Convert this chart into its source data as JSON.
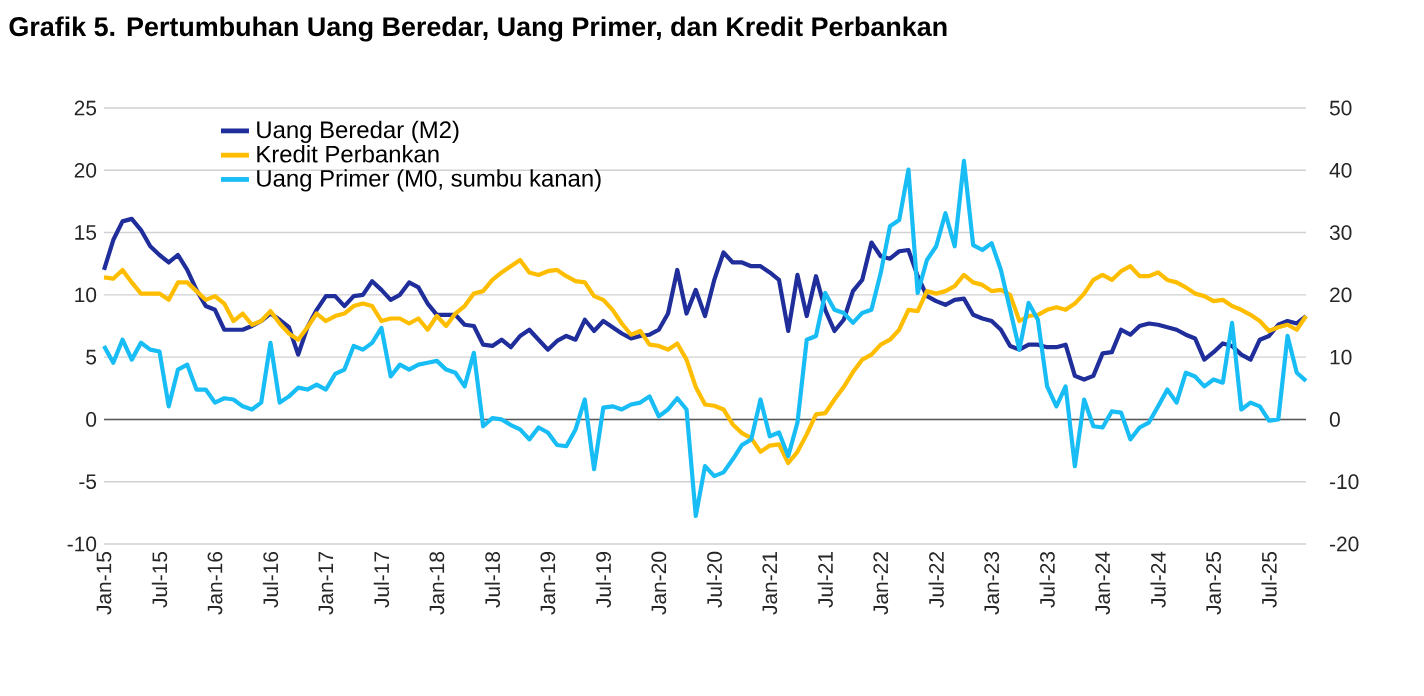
{
  "chart_data": {
    "type": "line",
    "title": "Grafik 5. Pertumbuhan Uang Beredar, Uang Primer, dan Kredit Perbankan",
    "x": [
      "2015-01",
      "2015-02",
      "2015-03",
      "2015-04",
      "2015-05",
      "2015-06",
      "2015-07",
      "2015-08",
      "2015-09",
      "2015-10",
      "2015-11",
      "2015-12",
      "2016-01",
      "2016-02",
      "2016-03",
      "2016-04",
      "2016-05",
      "2016-06",
      "2016-07",
      "2016-08",
      "2016-09",
      "2016-10",
      "2016-11",
      "2016-12",
      "2017-01",
      "2017-02",
      "2017-03",
      "2017-04",
      "2017-05",
      "2017-06",
      "2017-07",
      "2017-08",
      "2017-09",
      "2017-10",
      "2017-11",
      "2017-12",
      "2018-01",
      "2018-02",
      "2018-03",
      "2018-04",
      "2018-05",
      "2018-06",
      "2018-07",
      "2018-08",
      "2018-09",
      "2018-10",
      "2018-11",
      "2018-12",
      "2019-01",
      "2019-02",
      "2019-03",
      "2019-04",
      "2019-05",
      "2019-06",
      "2019-07",
      "2019-08",
      "2019-09",
      "2019-10",
      "2019-11",
      "2019-12",
      "2020-01",
      "2020-02",
      "2020-03",
      "2020-04",
      "2020-05",
      "2020-06",
      "2020-07",
      "2020-08",
      "2020-09",
      "2020-10",
      "2020-11",
      "2020-12",
      "2021-01",
      "2021-02",
      "2021-03",
      "2021-04",
      "2021-05",
      "2021-06",
      "2021-07",
      "2021-08",
      "2021-09",
      "2021-10",
      "2021-11",
      "2021-12",
      "2022-01",
      "2022-02",
      "2022-03",
      "2022-04",
      "2022-05",
      "2022-06",
      "2022-07",
      "2022-08",
      "2022-09",
      "2022-10",
      "2022-11",
      "2022-12",
      "2023-01",
      "2023-02",
      "2023-03",
      "2023-04",
      "2023-05",
      "2023-06",
      "2023-07",
      "2023-08",
      "2023-09",
      "2023-10",
      "2023-11",
      "2023-12",
      "2024-01",
      "2024-02",
      "2024-03",
      "2024-04",
      "2024-05",
      "2024-06",
      "2024-07",
      "2024-08",
      "2024-09",
      "2024-10",
      "2024-11",
      "2024-12",
      "2025-01",
      "2025-02",
      "2025-03",
      "2025-04",
      "2025-05",
      "2025-06",
      "2025-07",
      "2025-08",
      "2025-09",
      "2025-10",
      "2025-11"
    ],
    "series": [
      {
        "name": "Uang Beredar (M2)",
        "color": "#1f2e9b",
        "values": [
          12.0,
          14.4,
          15.9,
          16.1,
          15.2,
          13.9,
          13.2,
          12.6,
          13.2,
          12.0,
          10.4,
          9.1,
          8.8,
          7.2,
          7.2,
          7.2,
          7.5,
          7.9,
          8.5,
          8.0,
          7.4,
          5.2,
          7.4,
          8.8,
          9.9,
          9.9,
          9.1,
          9.9,
          10.0,
          11.1,
          10.4,
          9.6,
          10.0,
          11.0,
          10.6,
          9.3,
          8.4,
          8.4,
          8.4,
          7.6,
          7.5,
          6.0,
          5.9,
          6.4,
          5.8,
          6.7,
          7.2,
          6.4,
          5.6,
          6.3,
          6.7,
          6.4,
          8.0,
          7.1,
          7.9,
          7.4,
          6.9,
          6.5,
          6.7,
          6.8,
          7.2,
          8.5,
          12.0,
          8.5,
          10.4,
          8.3,
          11.2,
          13.4,
          12.6,
          12.6,
          12.3,
          12.3,
          11.8,
          11.2,
          7.1,
          11.6,
          8.3,
          11.5,
          8.8,
          7.1,
          8.0,
          10.3,
          11.2,
          14.2,
          13.1,
          12.9,
          13.5,
          13.6,
          11.5,
          9.9,
          9.5,
          9.2,
          9.6,
          9.7,
          8.4,
          8.1,
          7.9,
          7.2,
          5.9,
          5.6,
          6.0,
          6.0,
          5.8,
          5.8,
          6.0,
          3.5,
          3.2,
          3.5,
          5.3,
          5.4,
          7.2,
          6.8,
          7.5,
          7.7,
          7.6,
          7.4,
          7.2,
          6.8,
          6.5,
          4.8,
          5.4,
          6.1,
          5.9,
          5.2,
          4.8,
          6.4,
          6.7,
          7.6,
          7.9,
          7.7,
          8.3
        ]
      },
      {
        "name": "Kredit Perbankan",
        "color": "#ffbd00",
        "values": [
          11.4,
          11.3,
          12.0,
          11.0,
          10.1,
          10.1,
          10.1,
          9.6,
          11.0,
          11.0,
          10.3,
          9.6,
          9.9,
          9.3,
          7.9,
          8.5,
          7.6,
          7.9,
          8.7,
          7.7,
          6.9,
          6.4,
          7.4,
          8.5,
          7.9,
          8.3,
          8.5,
          9.1,
          9.3,
          9.1,
          7.9,
          8.1,
          8.1,
          7.7,
          8.1,
          7.2,
          8.3,
          7.5,
          8.5,
          9.1,
          10.1,
          10.3,
          11.2,
          11.8,
          12.3,
          12.8,
          11.8,
          11.6,
          11.9,
          12.0,
          11.5,
          11.1,
          11.0,
          9.9,
          9.6,
          8.8,
          7.7,
          6.8,
          7.1,
          6.0,
          5.9,
          5.6,
          6.1,
          4.8,
          2.6,
          1.2,
          1.1,
          0.8,
          -0.4,
          -1.1,
          -1.5,
          -2.6,
          -2.1,
          -2.0,
          -3.5,
          -2.6,
          -1.2,
          0.4,
          0.5,
          1.6,
          2.6,
          3.8,
          4.8,
          5.2,
          6.0,
          6.4,
          7.2,
          8.8,
          8.7,
          10.3,
          10.1,
          10.3,
          10.7,
          11.6,
          11.0,
          10.8,
          10.3,
          10.4,
          10.0,
          7.9,
          8.3,
          8.4,
          8.8,
          9.0,
          8.8,
          9.3,
          10.1,
          11.2,
          11.6,
          11.2,
          11.9,
          12.3,
          11.5,
          11.5,
          11.8,
          11.2,
          11.0,
          10.6,
          10.1,
          9.9,
          9.5,
          9.6,
          9.1,
          8.8,
          8.4,
          7.9,
          7.1,
          7.4,
          7.6,
          7.2,
          8.3
        ]
      },
      {
        "name": "Uang Primer (M0, sumbu kanan)",
        "color": "#19bdf5",
        "axis": "y2",
        "values": [
          11.8,
          9.1,
          12.8,
          9.6,
          12.3,
          11.2,
          10.9,
          2.1,
          8.0,
          8.8,
          4.8,
          4.8,
          2.7,
          3.4,
          3.2,
          2.1,
          1.6,
          2.7,
          12.3,
          2.7,
          3.7,
          5.1,
          4.8,
          5.6,
          4.8,
          7.3,
          8.0,
          11.8,
          11.2,
          12.3,
          14.7,
          6.9,
          8.8,
          8.0,
          8.8,
          9.1,
          9.4,
          8.0,
          7.5,
          5.3,
          10.7,
          -1.1,
          0.2,
          0.0,
          -0.9,
          -1.6,
          -3.2,
          -1.3,
          -2.1,
          -4.1,
          -4.3,
          -1.6,
          3.2,
          -8.0,
          1.9,
          2.1,
          1.6,
          2.4,
          2.7,
          3.7,
          0.5,
          1.6,
          3.4,
          1.6,
          -15.5,
          -7.5,
          -9.1,
          -8.5,
          -6.4,
          -4.1,
          -3.2,
          3.2,
          -2.7,
          -2.1,
          -5.9,
          -0.5,
          12.8,
          13.4,
          20.3,
          17.6,
          17.1,
          15.5,
          17.1,
          17.6,
          23.5,
          31.0,
          32.0,
          40.1,
          20.3,
          25.6,
          27.8,
          33.1,
          27.8,
          41.5,
          28.0,
          27.2,
          28.3,
          24.0,
          17.6,
          11.2,
          18.7,
          16.0,
          5.3,
          2.1,
          5.3,
          -7.5,
          3.2,
          -1.1,
          -1.3,
          1.3,
          1.1,
          -3.2,
          -1.3,
          -0.5,
          2.1,
          4.8,
          2.7,
          7.5,
          6.9,
          5.3,
          6.4,
          5.9,
          15.5,
          1.6,
          2.7,
          2.1,
          -0.2,
          0.0,
          13.4,
          7.5,
          6.2
        ]
      }
    ],
    "xlim": [
      "2015-01",
      "2025-11"
    ],
    "xticks": [
      {
        "value": "2015-01",
        "label": "Jan-15"
      },
      {
        "value": "2015-07",
        "label": "Jul-15"
      },
      {
        "value": "2016-01",
        "label": "Jan-16"
      },
      {
        "value": "2016-07",
        "label": "Jul-16"
      },
      {
        "value": "2017-01",
        "label": "Jan-17"
      },
      {
        "value": "2017-07",
        "label": "Jul-17"
      },
      {
        "value": "2018-01",
        "label": "Jan-18"
      },
      {
        "value": "2018-07",
        "label": "Jul-18"
      },
      {
        "value": "2019-01",
        "label": "Jan-19"
      },
      {
        "value": "2019-07",
        "label": "Jul-19"
      },
      {
        "value": "2020-01",
        "label": "Jan-20"
      },
      {
        "value": "2020-07",
        "label": "Jul-20"
      },
      {
        "value": "2021-01",
        "label": "Jan-21"
      },
      {
        "value": "2021-07",
        "label": "Jul-21"
      },
      {
        "value": "2022-01",
        "label": "Jan-22"
      },
      {
        "value": "2022-07",
        "label": "Jul-22"
      },
      {
        "value": "2023-01",
        "label": "Jan-23"
      },
      {
        "value": "2023-07",
        "label": "Jul-23"
      },
      {
        "value": "2024-01",
        "label": "Jan-24"
      },
      {
        "value": "2024-07",
        "label": "Jul-24"
      },
      {
        "value": "2025-01",
        "label": "Jan-25"
      },
      {
        "value": "2025-07",
        "label": "Jul-25"
      }
    ],
    "ylim": [
      -10,
      25
    ],
    "yticks": [
      -10,
      -5,
      0,
      5,
      10,
      15,
      20,
      25
    ],
    "y2lim": [
      -20,
      50
    ],
    "y2ticks": [
      -20,
      -10,
      0,
      10,
      20,
      30,
      40,
      50
    ],
    "ref_lines": [
      {
        "axis": "y",
        "value": 0,
        "color": "#595959"
      }
    ],
    "grid": "y",
    "legend": "top left"
  }
}
